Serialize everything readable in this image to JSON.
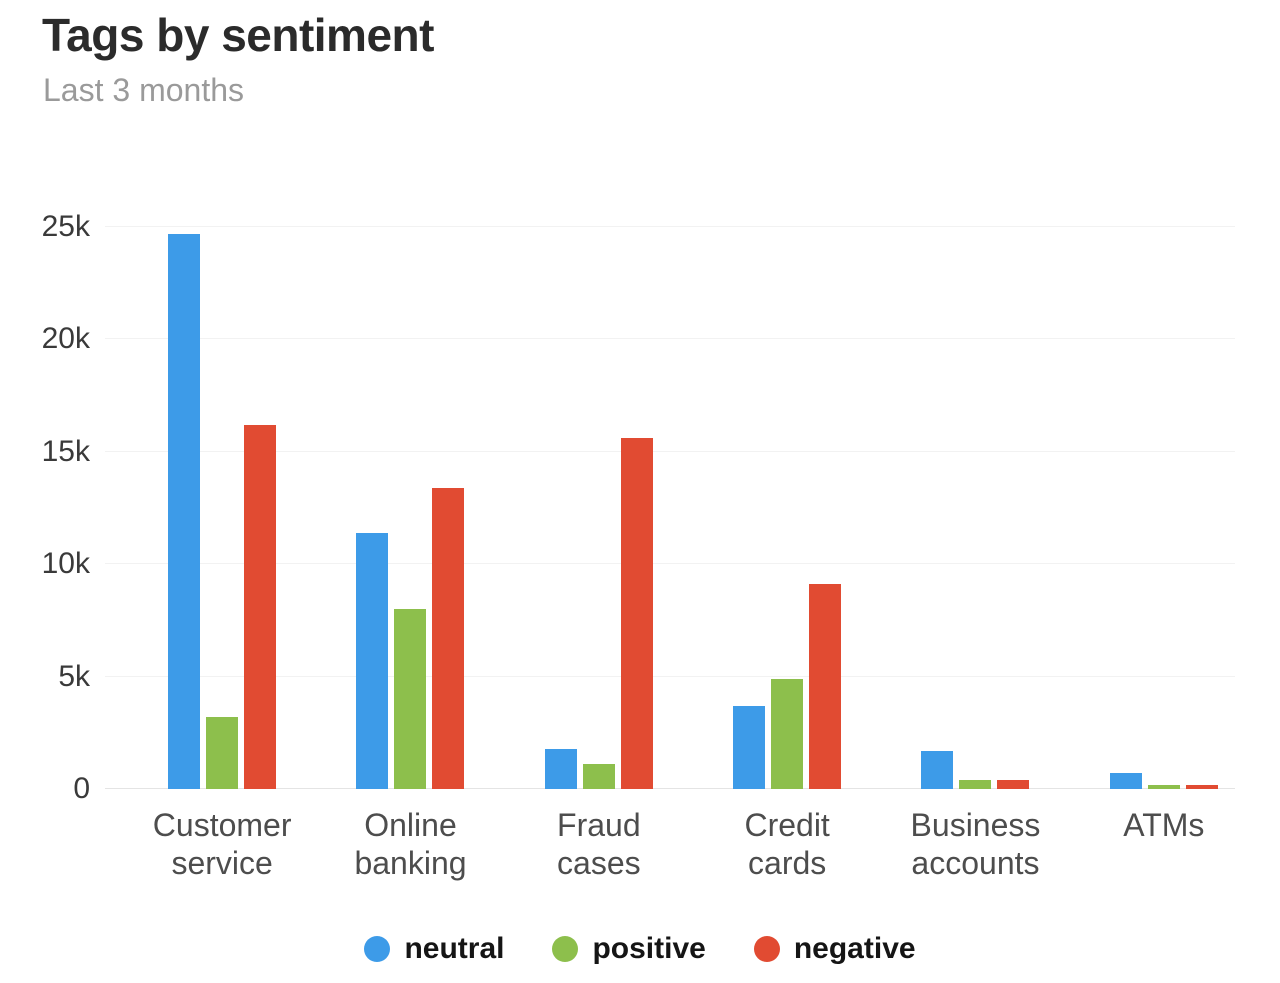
{
  "chart_data": {
    "type": "bar",
    "title": "Tags by sentiment",
    "subtitle": "Last 3 months",
    "categories": [
      "Customer service",
      "Online banking",
      "Fraud cases",
      "Credit cards",
      "Business accounts",
      "ATMs"
    ],
    "series": [
      {
        "name": "neutral",
        "color": "#3d9be8",
        "values": [
          24700,
          11400,
          1800,
          3700,
          1700,
          700
        ]
      },
      {
        "name": "positive",
        "color": "#8dbf4c",
        "values": [
          3200,
          8000,
          1100,
          4900,
          400,
          200
        ]
      },
      {
        "name": "negative",
        "color": "#e14b32",
        "values": [
          16200,
          13400,
          15600,
          9100,
          400,
          200
        ]
      }
    ],
    "xlabel": "",
    "ylabel": "",
    "ylim": [
      0,
      25000
    ],
    "yticks": [
      {
        "value": 0,
        "label": "0"
      },
      {
        "value": 5000,
        "label": "5k"
      },
      {
        "value": 10000,
        "label": "10k"
      },
      {
        "value": 15000,
        "label": "15k"
      },
      {
        "value": 20000,
        "label": "20k"
      },
      {
        "value": 25000,
        "label": "25k"
      }
    ],
    "grid": true,
    "legend_position": "bottom"
  }
}
